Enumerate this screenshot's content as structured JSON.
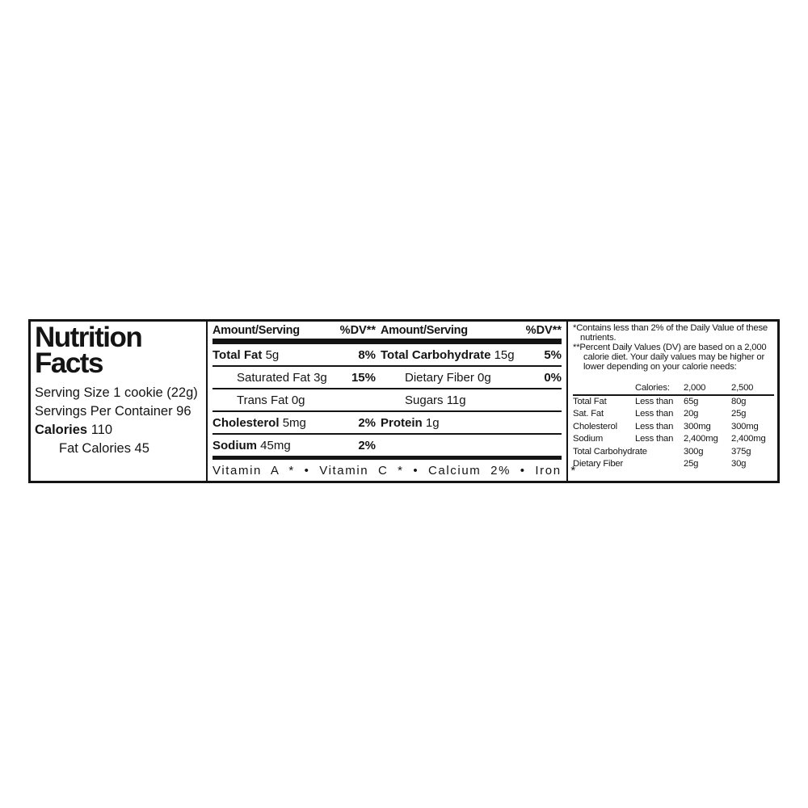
{
  "colors": {
    "ink": "#141414",
    "background": "#ffffff"
  },
  "identity": {
    "title_line1": "Nutrition",
    "title_line2": "Facts",
    "serving_size": "Serving Size 1 cookie (22g)",
    "servings_per_container": "Servings Per Container 96",
    "calories_label": "Calories",
    "calories_value": "110",
    "fat_calories": "Fat Calories 45"
  },
  "nutrients": {
    "amount_serving_header": "Amount/Serving",
    "dv_header": "%DV**",
    "rows": [
      {
        "l_label": "Total Fat",
        "l_value": "5g",
        "l_dv": "8%",
        "r_label": "Total Carbohydrate",
        "r_value": "15g",
        "r_dv": "5%"
      },
      {
        "l_label": "Saturated Fat",
        "l_value": "3g",
        "l_dv": "15%",
        "r_label": "Dietary Fiber",
        "r_value": "0g",
        "r_dv": "0%"
      },
      {
        "l_label": "Trans Fat",
        "l_value": "0g",
        "l_dv": "",
        "r_label": "Sugars",
        "r_value": "11g",
        "r_dv": ""
      },
      {
        "l_label": "Cholesterol",
        "l_value": "5mg",
        "l_dv": "2%",
        "r_label": "Protein",
        "r_value": "1g",
        "r_dv": ""
      },
      {
        "l_label": "Sodium",
        "l_value": "45mg",
        "l_dv": "2%",
        "r_label": "",
        "r_value": "",
        "r_dv": ""
      }
    ],
    "vitamins_line": "Vitamin A * • Vitamin C * • Calcium 2% • Iron *"
  },
  "footnotes": {
    "note1": "*Contains less than 2% of the Daily Value of these nutrients.",
    "note2": "**Percent Daily Values (DV) are based on a 2,000 calorie diet. Your daily values may be higher or lower depending on your calorie needs:"
  },
  "dv_table": {
    "calories_header": "Calories:",
    "col_2000": "2,000",
    "col_2500": "2,500",
    "rows": [
      {
        "name": "Total Fat",
        "qualifier": "Less than",
        "v2000": "65g",
        "v2500": "80g"
      },
      {
        "name": "Sat. Fat",
        "qualifier": "Less than",
        "v2000": "20g",
        "v2500": "25g"
      },
      {
        "name": "Cholesterol",
        "qualifier": "Less than",
        "v2000": "300mg",
        "v2500": "300mg"
      },
      {
        "name": "Sodium",
        "qualifier": "Less than",
        "v2000": "2,400mg",
        "v2500": "2,400mg"
      },
      {
        "name": "Total Carbohydrate",
        "qualifier": "",
        "v2000": "300g",
        "v2500": "375g"
      },
      {
        "name": "Dietary Fiber",
        "qualifier": "",
        "v2000": "25g",
        "v2500": "30g"
      }
    ]
  }
}
